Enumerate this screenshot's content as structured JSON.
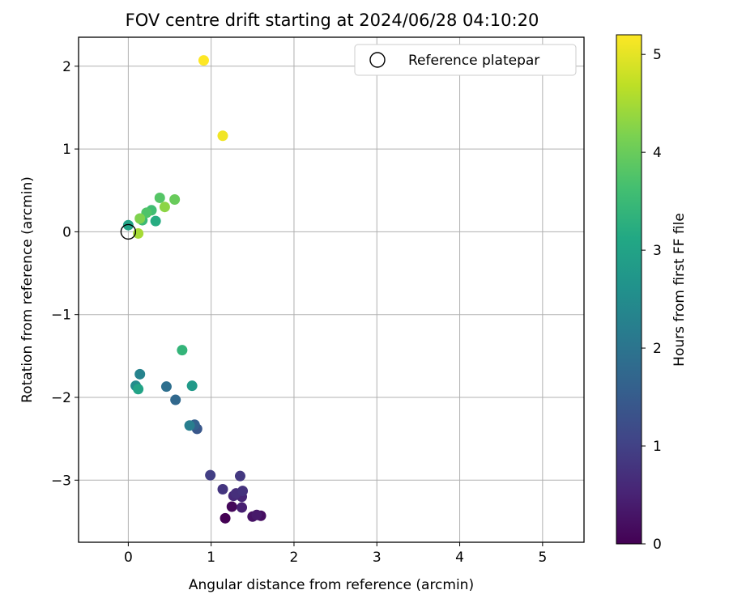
{
  "chart_data": {
    "type": "scatter",
    "title": "FOV centre drift starting at 2024/06/28 04:10:20",
    "xlabel": "Angular distance from reference (arcmin)",
    "ylabel": "Rotation from reference (arcmin)",
    "xlim": [
      -0.6,
      5.5
    ],
    "ylim": [
      -3.75,
      2.35
    ],
    "xticks": [
      0,
      1,
      2,
      3,
      4,
      5
    ],
    "xtick_labels": [
      "0",
      "1",
      "2",
      "3",
      "4",
      "5"
    ],
    "yticks": [
      2,
      1,
      0,
      -1,
      -2,
      -3
    ],
    "ytick_labels": [
      "2",
      "1",
      "0",
      "−1",
      "−2",
      "−3"
    ],
    "grid": true,
    "legend": {
      "placement": "top-right",
      "entries": [
        "Reference platepar"
      ]
    },
    "reference_point": {
      "x": 0,
      "y": 0
    },
    "colorbar": {
      "label": "Hours from first FF file",
      "colormap": "viridis",
      "range": [
        0,
        5.2
      ],
      "ticks": [
        0,
        1,
        2,
        3,
        4,
        5
      ],
      "tick_labels": [
        "0",
        "1",
        "2",
        "3",
        "4",
        "5"
      ]
    },
    "points": [
      {
        "x": 1.17,
        "y": -3.46,
        "c": 0.0
      },
      {
        "x": 1.25,
        "y": -3.32,
        "c": 0.1
      },
      {
        "x": 1.6,
        "y": -3.43,
        "c": 0.2
      },
      {
        "x": 1.5,
        "y": -3.44,
        "c": 0.25
      },
      {
        "x": 1.55,
        "y": -3.42,
        "c": 0.35
      },
      {
        "x": 1.37,
        "y": -3.33,
        "c": 0.45
      },
      {
        "x": 1.37,
        "y": -3.2,
        "c": 0.55
      },
      {
        "x": 1.27,
        "y": -3.19,
        "c": 0.6
      },
      {
        "x": 1.3,
        "y": -3.16,
        "c": 0.7
      },
      {
        "x": 1.38,
        "y": -3.13,
        "c": 0.75
      },
      {
        "x": 1.14,
        "y": -3.11,
        "c": 0.8
      },
      {
        "x": 1.35,
        "y": -2.95,
        "c": 0.85
      },
      {
        "x": 0.99,
        "y": -2.94,
        "c": 0.95
      },
      {
        "x": 0.83,
        "y": -2.38,
        "c": 1.4
      },
      {
        "x": 0.8,
        "y": -2.33,
        "c": 1.6
      },
      {
        "x": 0.57,
        "y": -2.03,
        "c": 1.75
      },
      {
        "x": 0.46,
        "y": -1.87,
        "c": 1.9
      },
      {
        "x": 0.74,
        "y": -2.34,
        "c": 2.2
      },
      {
        "x": 0.14,
        "y": -1.72,
        "c": 2.3
      },
      {
        "x": 0.09,
        "y": -1.86,
        "c": 2.5
      },
      {
        "x": 0.77,
        "y": -1.86,
        "c": 2.8
      },
      {
        "x": 0.12,
        "y": -1.9,
        "c": 3.0
      },
      {
        "x": 0.0,
        "y": 0.08,
        "c": 3.0
      },
      {
        "x": 0.33,
        "y": 0.13,
        "c": 3.2
      },
      {
        "x": 0.65,
        "y": -1.43,
        "c": 3.4
      },
      {
        "x": 0.17,
        "y": 0.14,
        "c": 3.5
      },
      {
        "x": 0.28,
        "y": 0.26,
        "c": 3.6
      },
      {
        "x": 0.22,
        "y": 0.23,
        "c": 3.75
      },
      {
        "x": 0.38,
        "y": 0.41,
        "c": 3.8
      },
      {
        "x": 0.56,
        "y": 0.39,
        "c": 4.0
      },
      {
        "x": 0.14,
        "y": 0.16,
        "c": 4.2
      },
      {
        "x": 0.44,
        "y": 0.3,
        "c": 4.3
      },
      {
        "x": 0.12,
        "y": -0.02,
        "c": 4.5
      },
      {
        "x": 1.14,
        "y": 1.16,
        "c": 5.1
      },
      {
        "x": 0.91,
        "y": 2.07,
        "c": 5.2
      }
    ]
  }
}
